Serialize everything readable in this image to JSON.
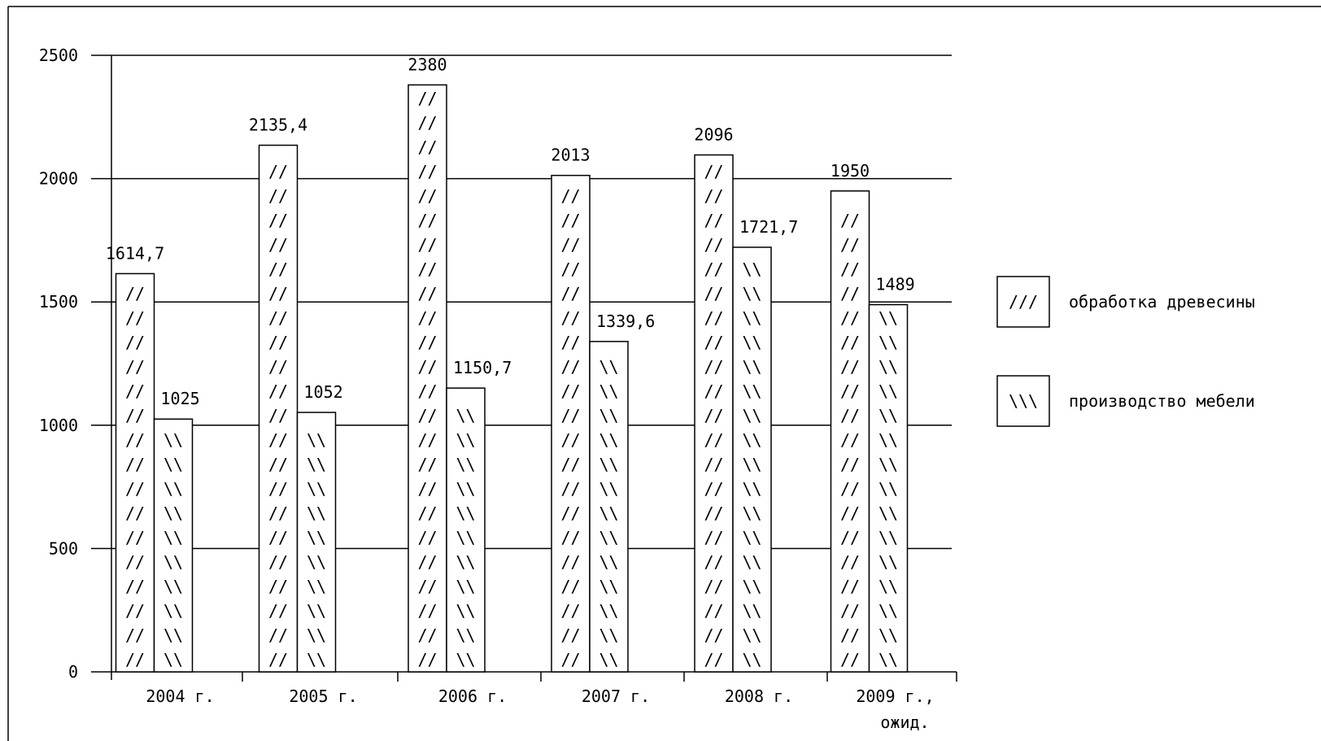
{
  "chart_data": {
    "type": "bar",
    "categories": [
      "2004 г.",
      "2005 г.",
      "2006 г.",
      "2007 г.",
      "2008 г.",
      "2009 г.,"
    ],
    "category_notes": [
      "",
      "",
      "",
      "",
      "",
      "ожид."
    ],
    "series": [
      {
        "name": "обработка древесины",
        "pattern_glyph": "///",
        "bar_pattern": "//",
        "values": [
          1614.7,
          2135.4,
          2380,
          2013,
          2096,
          1950
        ],
        "labels": [
          "1614,7",
          "2135,4",
          "2380",
          "2013",
          "2096",
          "1950"
        ]
      },
      {
        "name": "производство мебели",
        "pattern_glyph": "\\\\\\",
        "bar_pattern": "\\\\",
        "values": [
          1025,
          1052,
          1150.7,
          1339.6,
          1721.7,
          1489
        ],
        "labels": [
          "1025",
          "1052",
          "1150,7",
          "1339,6",
          "1721,7",
          "1489"
        ]
      }
    ],
    "yticks": [
      "0",
      "500",
      "1000",
      "1500",
      "2000",
      "2500"
    ],
    "ylim": [
      0,
      2500
    ],
    "grid": true,
    "legend_position": "right",
    "colors": {
      "stroke": "#000000",
      "background": "#ffffff"
    }
  }
}
